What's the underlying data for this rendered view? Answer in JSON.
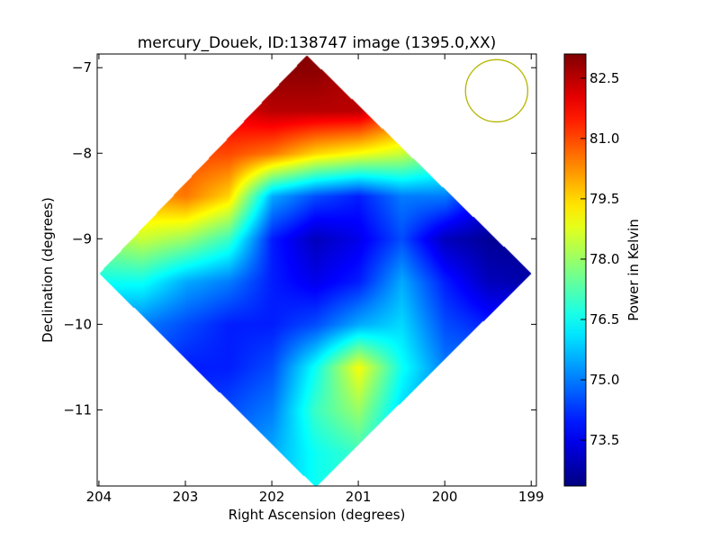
{
  "chart_data": {
    "type": "heatmap",
    "title": "mercury_Douek, ID:138747 image (1395.0,XX)",
    "xlabel": "Right Ascension (degrees)",
    "ylabel": "Declination (degrees)",
    "xlim": [
      204.02,
      198.94
    ],
    "ylim": [
      -11.89,
      -6.84
    ],
    "xticks": [
      204,
      203,
      202,
      201,
      200,
      199
    ],
    "xtick_labels": [
      "204",
      "203",
      "202",
      "201",
      "200",
      "199"
    ],
    "yticks": [
      -7,
      -8,
      -9,
      -10,
      -11
    ],
    "ytick_labels": [
      "−7",
      "−8",
      "−9",
      "−10",
      "−11"
    ],
    "colormap": "jet",
    "colorbar": {
      "label": "Power in Kelvin",
      "range": [
        72.36,
        83.1
      ],
      "ticks": [
        82.5,
        81.0,
        79.5,
        78.0,
        76.5,
        75.0,
        73.5
      ],
      "tick_labels": [
        "82.5",
        "81.0",
        "79.5",
        "78.0",
        "76.5",
        "75.0",
        "73.5"
      ]
    },
    "footprint_corners_deg": [
      [
        201.6,
        -6.85
      ],
      [
        199.0,
        -9.4
      ],
      [
        201.5,
        -11.9
      ],
      [
        204.0,
        -9.4
      ]
    ],
    "grid_ra": [
      204,
      203.5,
      203,
      202.5,
      202,
      201.5,
      201,
      200.5,
      200,
      199.5,
      199
    ],
    "grid_dec": [
      -7.0,
      -7.5,
      -8.0,
      -8.5,
      -9.0,
      -9.5,
      -10.0,
      -10.5,
      -11.0,
      -11.5
    ],
    "values": [
      [
        80,
        81,
        82,
        82.5,
        83,
        83,
        82.5,
        82,
        80,
        78,
        76
      ],
      [
        80,
        80.5,
        81.5,
        82,
        82.5,
        82.5,
        82.5,
        81,
        79,
        77,
        75
      ],
      [
        79.5,
        80,
        81,
        81,
        80.5,
        79.5,
        79,
        78.5,
        77.5,
        76,
        74.5
      ],
      [
        79,
        80,
        80.5,
        79.5,
        75.5,
        74.5,
        74,
        75,
        75,
        73.5,
        73
      ],
      [
        78,
        78.5,
        78,
        77,
        74,
        73,
        73.5,
        74.5,
        73,
        72.6,
        72.5
      ],
      [
        76.5,
        76.5,
        75.5,
        75,
        74,
        73.5,
        74,
        75.5,
        74,
        73,
        72.8
      ],
      [
        75,
        75,
        74.5,
        74,
        74,
        74.5,
        75.5,
        76,
        74.5,
        74,
        74
      ],
      [
        74.5,
        74.5,
        74,
        74,
        74.5,
        76.5,
        79,
        76.5,
        75,
        75,
        75
      ],
      [
        74.5,
        74.5,
        74,
        74.5,
        75,
        77,
        78,
        76,
        75,
        75,
        75
      ],
      [
        74.5,
        74.5,
        74.5,
        75,
        75.5,
        76.5,
        77,
        76,
        75.5,
        75,
        75
      ]
    ],
    "beam": {
      "ra": 199.4,
      "dec": -7.27,
      "radius_deg": 0.36,
      "color": "#b5b500"
    }
  }
}
